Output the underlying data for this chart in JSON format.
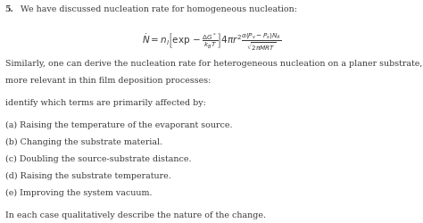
{
  "title_bold": "5.",
  "title_text": " We have discussed nucleation rate for homogeneous nucleation:",
  "formula": "$\\dot{N} = n_l\\left[\\exp - \\frac{\\Delta G^*}{k_B T}\\right] 4\\pi r^2 \\frac{\\alpha(P_v - P_s)N_A}{\\sqrt{2\\pi MRT}}$",
  "paragraph1_line1": "Similarly, one can derive the nucleation rate for heterogeneous nucleation on a planer substrate, which is",
  "paragraph1_line2": "more relevant in thin film deposition processes:",
  "paragraph2": "identify which terms are primarily affected by:",
  "items": [
    "(a) Raising the temperature of the evaporant source.",
    "(b) Changing the substrate material.",
    "(c) Doubling the source-substrate distance.",
    "(d) Raising the substrate temperature.",
    "(e) Improving the system vacuum."
  ],
  "footer": "In each case qualitatively describe the nature of the change.",
  "background_color": "#ffffff",
  "text_color": "#3a3a3a",
  "font_size": 6.8,
  "formula_font_size": 7.5
}
